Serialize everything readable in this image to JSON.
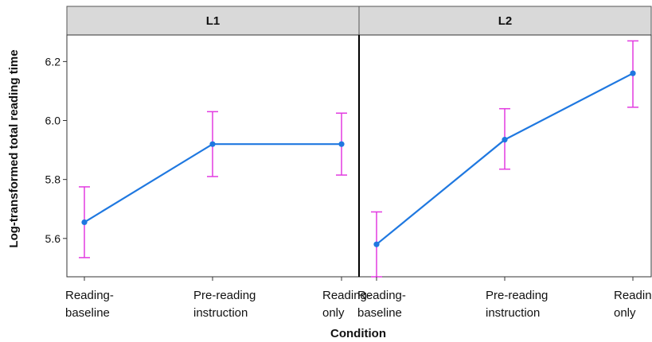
{
  "chart_data": {
    "type": "line",
    "xlabel": "Condition",
    "ylabel": "Log-transformed total reading time",
    "ylim": [
      5.47,
      6.29
    ],
    "yticks": [
      "5.6",
      "5.8",
      "6.0",
      "6.2"
    ],
    "categories": [
      [
        "Reading-",
        "baseline"
      ],
      [
        "Pre-reading",
        "instruction"
      ],
      [
        "Reading-",
        "only"
      ]
    ],
    "line_color": "#1f78e0",
    "errorbar_color": "#e23be0",
    "grid": false,
    "panels": [
      {
        "label": "L1",
        "values": [
          5.655,
          5.92,
          5.92
        ],
        "lower": [
          5.535,
          5.81,
          5.815
        ],
        "upper": [
          5.775,
          6.03,
          6.025
        ]
      },
      {
        "label": "L2",
        "values": [
          5.58,
          5.935,
          6.16
        ],
        "lower": [
          5.47,
          5.835,
          6.045
        ],
        "upper": [
          5.69,
          6.04,
          6.27
        ]
      }
    ]
  }
}
